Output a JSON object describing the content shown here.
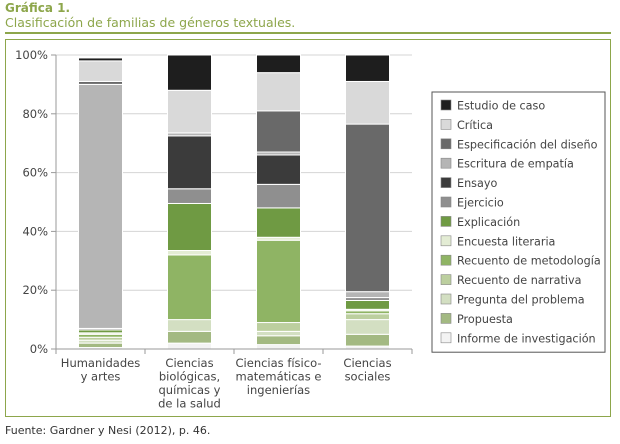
{
  "figure": {
    "label": "Gráfica 1.",
    "title": "Clasificación de familias de géneros textuales.",
    "source": "Fuente: Gardner y Nesi (2012), p. 46."
  },
  "chart_data": {
    "type": "bar",
    "stacked": true,
    "title": "Clasificación de familias de géneros textuales.",
    "xlabel": "",
    "ylabel": "",
    "ylim": [
      0,
      100
    ],
    "yticks": [
      "0%",
      "20%",
      "40%",
      "60%",
      "80%",
      "100%"
    ],
    "grid": true,
    "legend_position": "right",
    "categories": [
      [
        "Humanidades",
        "y artes"
      ],
      [
        "Ciencias",
        "biológicas,",
        "químicas y",
        "de la salud"
      ],
      [
        "Ciencias físico-",
        "matemáticas e",
        "ingenierías"
      ],
      [
        "Ciencias",
        "sociales"
      ]
    ],
    "series": [
      {
        "name": "Informe de investigación",
        "color": "#f3f3f3",
        "values": [
          0.5,
          2,
          1.5,
          1
        ]
      },
      {
        "name": "Propuesta",
        "color": "#a3b982",
        "values": [
          1.5,
          4,
          3,
          4
        ]
      },
      {
        "name": "Pregunta del problema",
        "color": "#d3dfc2",
        "values": [
          1,
          4,
          1.5,
          5
        ]
      },
      {
        "name": "Recuento de narrativa",
        "color": "#bccf9f",
        "values": [
          1,
          0,
          3,
          2
        ]
      },
      {
        "name": "Recuento de metodología",
        "color": "#8fb464",
        "values": [
          1,
          22,
          28,
          1
        ]
      },
      {
        "name": "Encuesta literaria",
        "color": "#e3ecd4",
        "values": [
          0.5,
          1.5,
          1,
          0.5
        ]
      },
      {
        "name": "Explicación",
        "color": "#6f9a43",
        "values": [
          1,
          16,
          10,
          3
        ]
      },
      {
        "name": "Ejercicio",
        "color": "#8f8f8f",
        "values": [
          0.5,
          5,
          8,
          1
        ]
      },
      {
        "name": "Ensayo",
        "color": "#3b3b3b",
        "values": [
          0,
          18,
          10,
          0
        ]
      },
      {
        "name": "Escritura de empatía",
        "color": "#b5b5b5",
        "values": [
          83,
          1,
          1,
          2
        ]
      },
      {
        "name": "Especificación del diseño",
        "color": "#696969",
        "values": [
          1,
          0,
          14,
          57
        ]
      },
      {
        "name": "Crítica",
        "color": "#d9d9d9",
        "values": [
          7,
          14.5,
          13,
          14.5
        ]
      },
      {
        "name": "Estudio de caso",
        "color": "#1e1e1e",
        "values": [
          1,
          12,
          6,
          9
        ]
      }
    ]
  }
}
